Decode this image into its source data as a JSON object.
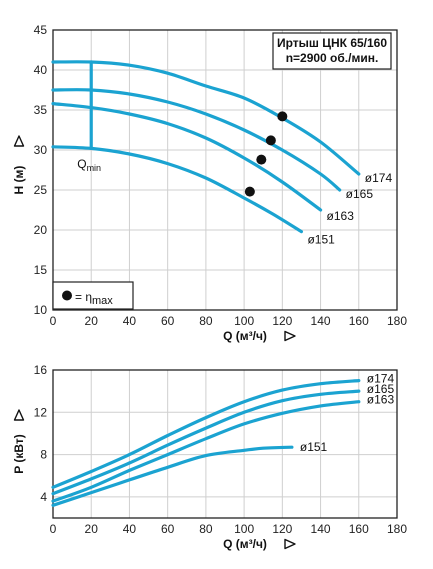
{
  "chart_data": [
    {
      "type": "line",
      "title": "Иртыш ЦНК 65/160",
      "subtitle": "n=2900 об./мин.",
      "xlabel": "Q (м³/ч)",
      "ylabel": "H (м)",
      "xlim": [
        0,
        180
      ],
      "ylim": [
        10,
        45
      ],
      "xticks": [
        0,
        20,
        40,
        60,
        80,
        100,
        120,
        140,
        160,
        180
      ],
      "yticks": [
        10,
        15,
        20,
        25,
        30,
        35,
        40,
        45
      ],
      "grid": true,
      "series": [
        {
          "name": "ø174",
          "x": [
            0,
            20,
            40,
            60,
            80,
            100,
            120,
            140,
            160
          ],
          "y": [
            41,
            41,
            40.6,
            39.6,
            38,
            36.5,
            34,
            31,
            27
          ]
        },
        {
          "name": "ø165",
          "x": [
            0,
            20,
            40,
            60,
            80,
            100,
            120,
            140,
            150
          ],
          "y": [
            37.5,
            37.5,
            37,
            36,
            34.5,
            32.5,
            30,
            27,
            25
          ]
        },
        {
          "name": "ø163",
          "x": [
            0,
            20,
            40,
            60,
            80,
            100,
            120,
            140
          ],
          "y": [
            35.8,
            35.3,
            34.5,
            33.3,
            31.5,
            29,
            26,
            22.5
          ]
        },
        {
          "name": "ø151",
          "x": [
            0,
            20,
            40,
            60,
            80,
            100,
            115,
            130
          ],
          "y": [
            30.4,
            30.2,
            29.5,
            28.3,
            26.5,
            24,
            22,
            19.8
          ]
        }
      ],
      "eta_max_points": [
        {
          "x": 120,
          "y": 34.2
        },
        {
          "x": 114,
          "y": 31.2
        },
        {
          "x": 109,
          "y": 28.8
        },
        {
          "x": 103,
          "y": 24.8
        }
      ],
      "qmin_x": 20,
      "qmin_label": "Q",
      "qmin_sub": "min",
      "legend_label": "= η",
      "legend_sub": "max"
    },
    {
      "type": "line",
      "xlabel": "Q (м³/ч)",
      "ylabel": "P (кВт)",
      "xlim": [
        0,
        180
      ],
      "ylim": [
        2,
        16
      ],
      "xticks": [
        0,
        20,
        40,
        60,
        80,
        100,
        120,
        140,
        160,
        180
      ],
      "yticks": [
        4,
        8,
        12,
        16
      ],
      "grid": true,
      "series": [
        {
          "name": "ø174",
          "x": [
            0,
            20,
            40,
            60,
            80,
            100,
            120,
            140,
            160
          ],
          "y": [
            4.9,
            6.4,
            8,
            9.8,
            11.5,
            13,
            14.1,
            14.7,
            15
          ]
        },
        {
          "name": "ø165",
          "x": [
            0,
            20,
            40,
            60,
            80,
            100,
            120,
            140,
            160
          ],
          "y": [
            4.3,
            5.7,
            7.2,
            8.9,
            10.5,
            12,
            13.1,
            13.7,
            14
          ]
        },
        {
          "name": "ø163",
          "x": [
            0,
            20,
            40,
            60,
            80,
            100,
            120,
            140,
            160
          ],
          "y": [
            3.6,
            4.9,
            6.5,
            8,
            9.5,
            10.9,
            11.9,
            12.6,
            13
          ]
        },
        {
          "name": "ø151",
          "x": [
            0,
            20,
            40,
            60,
            80,
            100,
            110,
            125
          ],
          "y": [
            3.2,
            4.4,
            5.6,
            6.8,
            7.9,
            8.4,
            8.6,
            8.7
          ]
        }
      ]
    }
  ]
}
